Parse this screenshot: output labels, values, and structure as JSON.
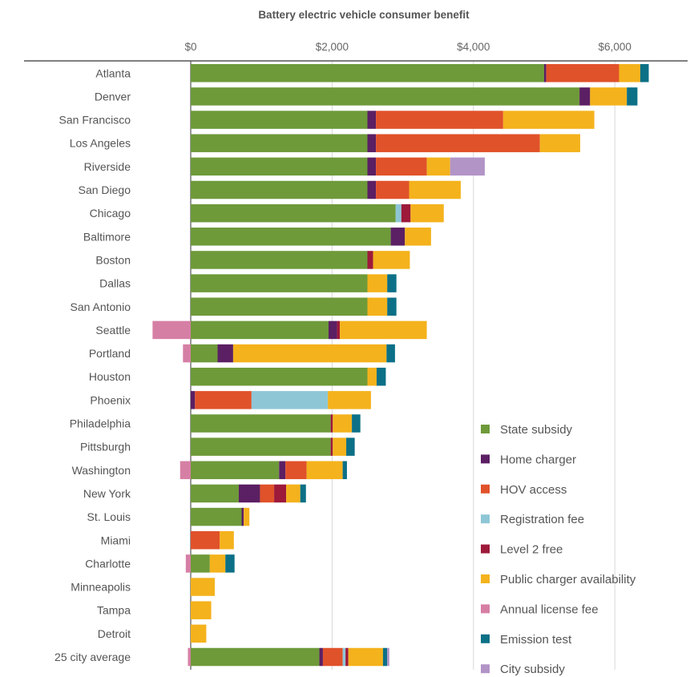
{
  "chart_data": {
    "type": "bar",
    "orientation": "horizontal",
    "stacked": true,
    "title": "Battery electric vehicle consumer benefit",
    "xlabel": "",
    "ylabel": "",
    "x_axis_position": "top",
    "xlim": [
      -550,
      6700
    ],
    "xticks": [
      0,
      2000,
      4000,
      6000
    ],
    "xtick_labels": [
      "$0",
      "$2,000",
      "$4,000",
      "$6,000"
    ],
    "grid": "vertical",
    "legend_position": "bottom-right",
    "categories": [
      "Atlanta",
      "Denver",
      "San Francisco",
      "Los Angeles",
      "Riverside",
      "San Diego",
      "Chicago",
      "Baltimore",
      "Boston",
      "Dallas",
      "San Antonio",
      "Seattle",
      "Portland",
      "Houston",
      "Phoenix",
      "Philadelphia",
      "Pittsburgh",
      "Washington",
      "New York",
      "St. Louis",
      "Miami",
      "Charlotte",
      "Minneapolis",
      "Tampa",
      "Detroit",
      "25 city average"
    ],
    "series": [
      {
        "name": "State subsidy",
        "color": "#6e9a3a",
        "values": [
          5000,
          5500,
          2500,
          2500,
          2500,
          2500,
          2900,
          2830,
          2500,
          2500,
          2500,
          1950,
          380,
          2500,
          0,
          1980,
          1980,
          1250,
          680,
          720,
          0,
          270,
          0,
          0,
          0,
          1820
        ]
      },
      {
        "name": "Home charger",
        "color": "#5b1f63",
        "values": [
          30,
          150,
          120,
          120,
          120,
          120,
          0,
          200,
          0,
          0,
          0,
          120,
          220,
          0,
          60,
          0,
          0,
          90,
          300,
          30,
          0,
          0,
          0,
          0,
          0,
          50
        ]
      },
      {
        "name": "HOV access",
        "color": "#e0522a",
        "values": [
          1030,
          0,
          1800,
          2320,
          720,
          470,
          0,
          0,
          0,
          0,
          0,
          0,
          0,
          0,
          800,
          0,
          0,
          300,
          200,
          0,
          410,
          0,
          0,
          0,
          0,
          280
        ]
      },
      {
        "name": "Registration fee",
        "color": "#8ec6d6",
        "values": [
          0,
          0,
          0,
          0,
          0,
          0,
          80,
          0,
          0,
          0,
          0,
          0,
          0,
          0,
          1080,
          0,
          0,
          0,
          0,
          0,
          0,
          0,
          0,
          0,
          0,
          40
        ]
      },
      {
        "name": "Level 2 free",
        "color": "#9d1a3a",
        "values": [
          0,
          0,
          0,
          0,
          0,
          0,
          130,
          0,
          80,
          0,
          0,
          40,
          0,
          0,
          0,
          30,
          30,
          0,
          170,
          0,
          0,
          0,
          0,
          0,
          0,
          40
        ]
      },
      {
        "name": "Public charger availability",
        "color": "#f4b21c",
        "values": [
          300,
          520,
          1290,
          570,
          330,
          730,
          470,
          370,
          520,
          280,
          280,
          1230,
          2170,
          130,
          610,
          270,
          190,
          510,
          200,
          80,
          200,
          220,
          340,
          290,
          220,
          490
        ]
      },
      {
        "name": "Annual license fee",
        "color": "#d67fa5",
        "values": [
          0,
          0,
          0,
          0,
          0,
          0,
          0,
          0,
          0,
          0,
          0,
          -540,
          -110,
          0,
          0,
          0,
          0,
          -150,
          0,
          0,
          0,
          -70,
          0,
          0,
          0,
          -40
        ]
      },
      {
        "name": "Emission test",
        "color": "#0c7086",
        "values": [
          120,
          150,
          0,
          0,
          0,
          0,
          0,
          0,
          0,
          130,
          130,
          0,
          120,
          130,
          0,
          120,
          120,
          60,
          80,
          0,
          0,
          130,
          0,
          0,
          0,
          60
        ]
      },
      {
        "name": "City subsidy",
        "color": "#b294c7",
        "values": [
          0,
          0,
          0,
          0,
          490,
          0,
          0,
          0,
          0,
          0,
          0,
          0,
          0,
          0,
          0,
          0,
          0,
          0,
          0,
          0,
          0,
          0,
          0,
          0,
          0,
          30
        ]
      }
    ]
  }
}
